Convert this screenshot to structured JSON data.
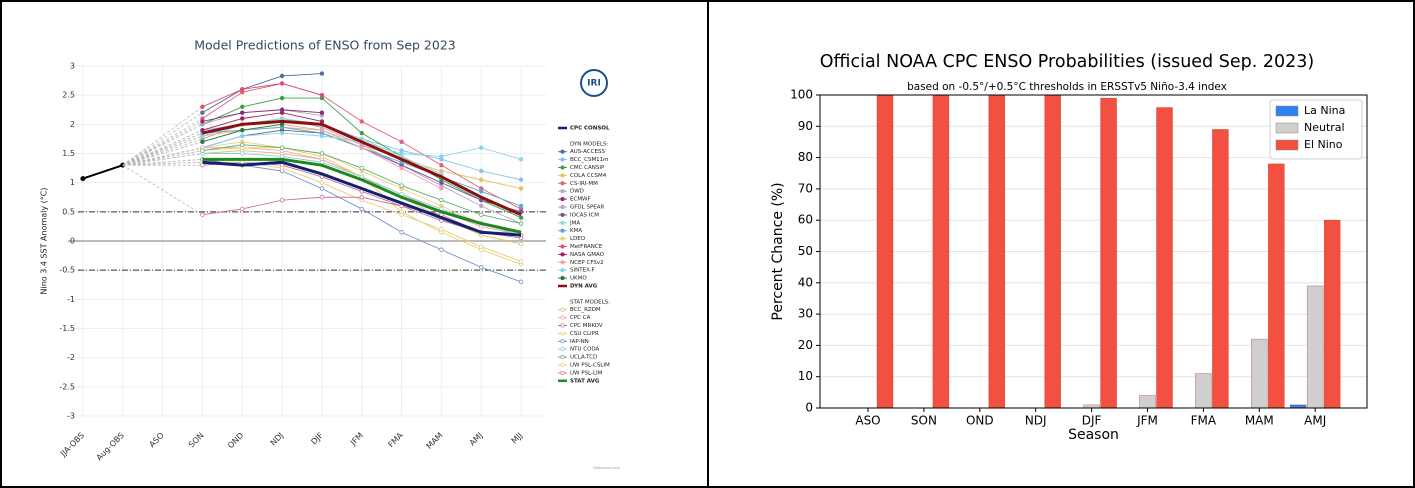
{
  "chart_data": [
    {
      "type": "line",
      "title": "Model Predictions of ENSO from Sep 2023",
      "y_label": "Nino 3.4 SST Anomaly (°C)",
      "logo_text": "IRI",
      "credit": "Statcharts.com",
      "categories": [
        "JJA-OBS",
        "Aug-OBS",
        "ASO",
        "SON",
        "OND",
        "NDJ",
        "DJF",
        "JFM",
        "FMA",
        "MAM",
        "AMJ",
        "MJJ"
      ],
      "ylim": [
        -3,
        3
      ],
      "yticks": [
        -3,
        -2.5,
        -2,
        -1.5,
        -1,
        -0.5,
        0,
        0.5,
        1,
        1.5,
        2,
        2.5,
        3
      ],
      "threshold_lines": [
        0.5,
        -0.5
      ],
      "grid": true,
      "observed": {
        "color": "#000000",
        "values": [
          1.07,
          1.3,
          null,
          null,
          null,
          null,
          null,
          null,
          null,
          null,
          null,
          null
        ]
      },
      "groups": [
        {
          "series": [
            {
              "name": "CPC CONSOL",
              "color": "#14206e",
              "values": [
                null,
                null,
                null,
                1.35,
                1.3,
                1.35,
                1.15,
                0.9,
                0.65,
                0.4,
                0.15,
                0.1
              ]
            }
          ]
        },
        {
          "name": "DYN MODELS:",
          "series": [
            {
              "name": "AUS-ACCESS",
              "color": "#4a6fa5",
              "values": [
                null,
                null,
                null,
                2.2,
                2.6,
                2.83,
                2.87,
                null,
                null,
                null,
                null,
                null
              ]
            },
            {
              "name": "BCC_CSM11m",
              "color": "#7fc6e8",
              "values": [
                null,
                null,
                null,
                1.9,
                2.0,
                2.1,
                2.0,
                1.75,
                1.55,
                1.4,
                1.2,
                1.05
              ]
            },
            {
              "name": "CMC CANSIP",
              "color": "#3aa34a",
              "values": [
                null,
                null,
                null,
                2.0,
                2.3,
                2.45,
                2.45,
                1.85,
                1.45,
                1.05,
                0.7,
                0.4
              ]
            },
            {
              "name": "COLA CCSM4",
              "color": "#e6c060",
              "values": [
                null,
                null,
                null,
                1.8,
                1.9,
                1.95,
                1.9,
                1.65,
                1.4,
                1.2,
                1.05,
                0.9
              ]
            },
            {
              "name": "CS-IRI-MM",
              "color": "#e0607a",
              "values": [
                null,
                null,
                null,
                2.1,
                2.55,
                2.7,
                2.5,
                2.05,
                1.7,
                1.3,
                0.9,
                0.55
              ]
            },
            {
              "name": "DWD",
              "color": "#b0b0b0",
              "values": [
                null,
                null,
                null,
                2.0,
                2.2,
                2.25,
                2.15,
                null,
                null,
                null,
                null,
                null
              ]
            },
            {
              "name": "ECMWF",
              "color": "#8e2a7a",
              "values": [
                null,
                null,
                null,
                2.05,
                2.2,
                2.25,
                2.2,
                null,
                null,
                null,
                null,
                null
              ]
            },
            {
              "name": "GFDL SPEAR",
              "color": "#c0a0c8",
              "values": [
                null,
                null,
                null,
                1.75,
                2.0,
                2.1,
                1.95,
                1.65,
                1.3,
                0.95,
                0.6,
                0.3
              ]
            },
            {
              "name": "IOCAS ICM",
              "color": "#6a5a9a",
              "values": [
                null,
                null,
                null,
                1.6,
                1.8,
                1.9,
                1.85,
                1.6,
                1.3,
                1.0,
                0.7,
                0.5
              ]
            },
            {
              "name": "JMA",
              "color": "#9ad0e0",
              "values": [
                null,
                null,
                null,
                1.8,
                2.0,
                2.1,
                2.0,
                1.75,
                1.45,
                1.15,
                null,
                null
              ]
            },
            {
              "name": "KMA",
              "color": "#5aaac8",
              "values": [
                null,
                null,
                null,
                1.85,
                1.9,
                1.95,
                1.85,
                1.6,
                1.35,
                1.1,
                0.85,
                0.6
              ]
            },
            {
              "name": "LDEO",
              "color": "#f0d080",
              "values": [
                null,
                null,
                null,
                1.6,
                1.7,
                1.6,
                1.5,
                1.2,
                0.9,
                0.6,
                0.3,
                0.1
              ]
            },
            {
              "name": "MetFRANCE",
              "color": "#e05070",
              "values": [
                null,
                null,
                null,
                2.3,
                2.6,
                2.7,
                2.5,
                null,
                null,
                null,
                null,
                null
              ]
            },
            {
              "name": "NASA GMAO",
              "color": "#a02060",
              "values": [
                null,
                null,
                null,
                1.9,
                2.1,
                2.2,
                2.05,
                null,
                null,
                null,
                null,
                null
              ]
            },
            {
              "name": "NCEP CFSv2",
              "color": "#f4a0b0",
              "values": [
                null,
                null,
                null,
                1.7,
                1.9,
                2.0,
                1.9,
                1.6,
                1.25,
                0.9,
                null,
                null
              ]
            },
            {
              "name": "SINTEX-F",
              "color": "#8ad4e8",
              "values": [
                null,
                null,
                null,
                1.6,
                1.8,
                1.85,
                1.8,
                1.7,
                1.5,
                1.45,
                1.6,
                1.4
              ]
            },
            {
              "name": "UKMO",
              "color": "#2a7a3a",
              "values": [
                null,
                null,
                null,
                1.7,
                1.9,
                2.0,
                null,
                null,
                null,
                null,
                null,
                null
              ]
            },
            {
              "name": "DYN AVG",
              "color": "#8b1010",
              "values": [
                null,
                null,
                null,
                1.85,
                2.0,
                2.05,
                2.0,
                1.7,
                1.4,
                1.1,
                0.75,
                0.45
              ]
            }
          ]
        },
        {
          "name": "STAT MODELS:",
          "series": [
            {
              "name": "BCC_RZDM",
              "color": "#d8c070",
              "values": [
                null,
                null,
                null,
                1.5,
                1.55,
                1.5,
                1.4,
                1.1,
                0.75,
                0.4,
                0.1,
                -0.05
              ]
            },
            {
              "name": "CPC CA",
              "color": "#f0a0c0",
              "values": [
                null,
                null,
                null,
                1.6,
                1.6,
                1.55,
                1.4,
                1.1,
                0.8,
                0.5,
                0.25,
                0.1
              ]
            },
            {
              "name": "CPC MRKOV",
              "color": "#c07090",
              "values": [
                null,
                null,
                null,
                1.3,
                1.35,
                1.3,
                1.1,
                0.85,
                0.6,
                0.35,
                0.15,
                0.05
              ]
            },
            {
              "name": "CSU CLIPR",
              "color": "#e8d060",
              "values": [
                null,
                null,
                null,
                1.55,
                1.6,
                1.6,
                1.45,
                1.1,
                0.5,
                0.15,
                -0.15,
                -0.4
              ]
            },
            {
              "name": "IAP-NN",
              "color": "#7090c8",
              "values": [
                null,
                null,
                null,
                1.4,
                1.3,
                1.2,
                0.9,
                0.55,
                0.15,
                -0.15,
                -0.45,
                -0.7
              ]
            },
            {
              "name": "NTU CODA",
              "color": "#90c8d8",
              "values": [
                null,
                null,
                null,
                1.5,
                1.5,
                1.45,
                1.35,
                1.1,
                0.8,
                0.55,
                0.3,
                0.1
              ]
            },
            {
              "name": "UCLA-TCD",
              "color": "#60b070",
              "values": [
                null,
                null,
                null,
                1.55,
                1.65,
                1.6,
                1.5,
                1.25,
                0.95,
                0.7,
                0.45,
                0.3
              ]
            },
            {
              "name": "UW PSL-CSLIM",
              "color": "#e8c880",
              "values": [
                null,
                null,
                null,
                1.35,
                1.35,
                1.25,
                1.0,
                0.7,
                0.45,
                0.2,
                -0.1,
                -0.35
              ]
            },
            {
              "name": "UW PSL-LIM",
              "color": "#d070a0",
              "values": [
                null,
                null,
                null,
                0.45,
                0.55,
                0.7,
                0.75,
                0.75,
                0.6,
                0.45,
                0.15,
                0.1
              ]
            },
            {
              "name": "STAT AVG",
              "color": "#1e8a1e",
              "values": [
                null,
                null,
                null,
                1.4,
                1.4,
                1.4,
                1.3,
                1.05,
                0.75,
                0.5,
                0.3,
                0.15
              ]
            }
          ]
        }
      ]
    },
    {
      "type": "bar",
      "title": "Official NOAA CPC ENSO Probabilities (issued Sep. 2023)",
      "subtitle": "based on -0.5°/+0.5°C thresholds in ERSSTv5 Niño-3.4 index",
      "x_label": "Season",
      "y_label": "Percent Chance (%)",
      "categories": [
        "ASO",
        "SON",
        "OND",
        "NDJ",
        "DJF",
        "JFM",
        "FMA",
        "MAM",
        "AMJ"
      ],
      "series": [
        {
          "name": "La Nina",
          "color": "#2f80f0",
          "values": [
            0,
            0,
            0,
            0,
            0,
            0,
            0,
            0,
            1
          ]
        },
        {
          "name": "Neutral",
          "color": "#cfcfcf",
          "values": [
            0,
            0,
            0,
            0,
            1,
            4,
            11,
            22,
            39
          ]
        },
        {
          "name": "El Nino",
          "color": "#f25040",
          "values": [
            100,
            100,
            100,
            100,
            99,
            96,
            89,
            78,
            60
          ]
        }
      ],
      "ylim": [
        0,
        100
      ],
      "yticks": [
        0,
        10,
        20,
        30,
        40,
        50,
        60,
        70,
        80,
        90,
        100
      ],
      "grid": true,
      "legend": "upper right"
    }
  ]
}
